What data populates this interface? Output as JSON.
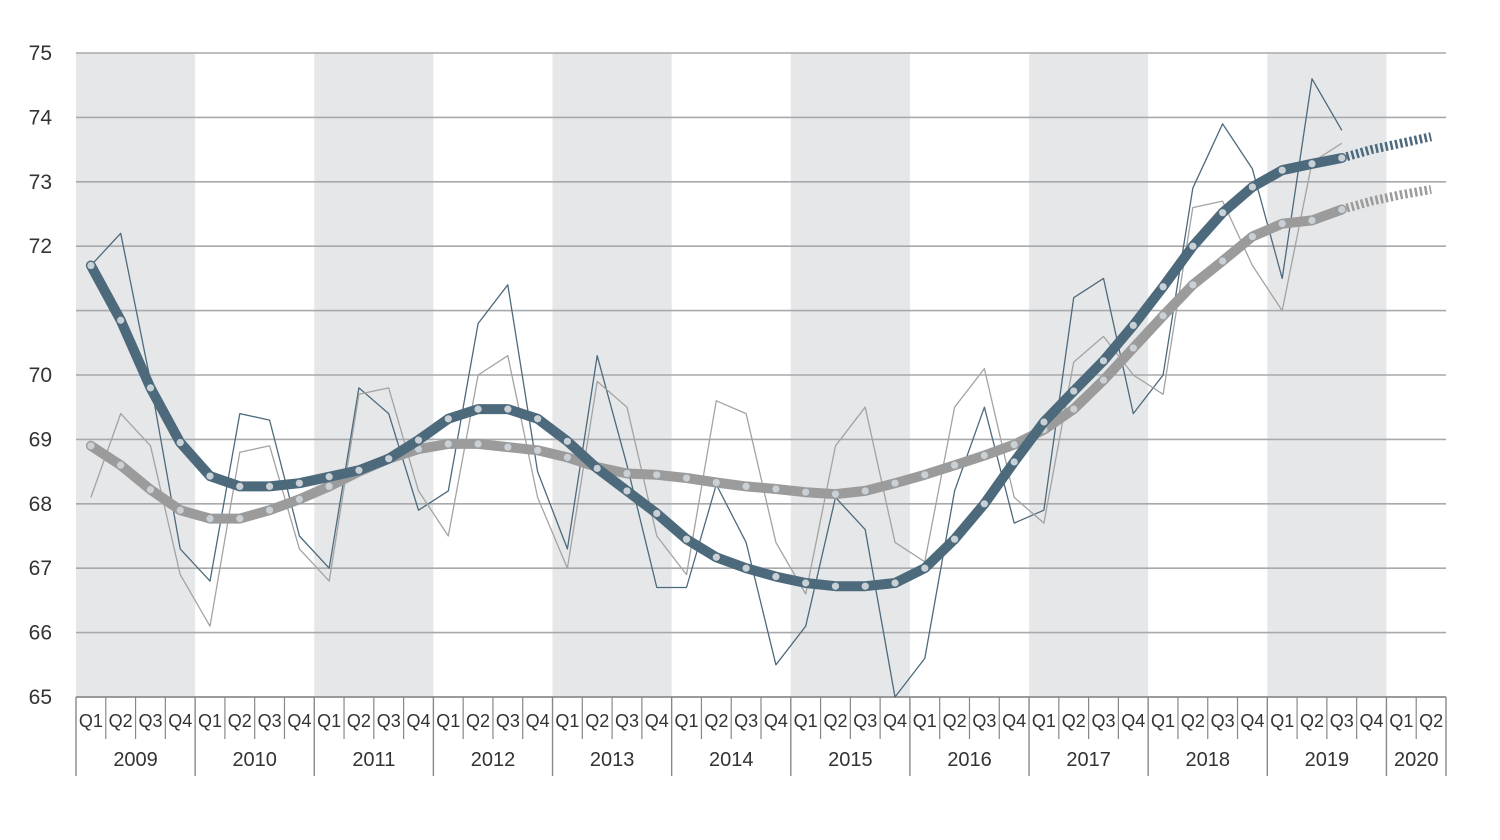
{
  "chart_data": {
    "type": "line",
    "title": "",
    "xlabel": "",
    "ylabel": "",
    "ylim": [
      65,
      75
    ],
    "y_ticks": [
      65,
      66,
      67,
      68,
      69,
      70,
      72,
      73,
      74,
      75
    ],
    "grid": "horizontal",
    "legend": "none",
    "colors": {
      "band": "#e6e7e9",
      "grid": "#a7a9ac",
      "series_dark": "#4d6a7c",
      "series_gray": "#9b9b9b",
      "marker": "#c9d0d6",
      "thin_gray": "#a3a3a3",
      "axis": "#888888"
    },
    "x_quarter_labels": [
      "Q1",
      "Q2",
      "Q3",
      "Q4"
    ],
    "years": [
      "2009",
      "2010",
      "2011",
      "2012",
      "2013",
      "2014",
      "2015",
      "2016",
      "2017",
      "2018",
      "2019",
      "2020"
    ],
    "years_quarters": [
      4,
      4,
      4,
      4,
      4,
      4,
      4,
      4,
      4,
      4,
      4,
      2
    ],
    "series": [
      {
        "style": "thin",
        "color": "#4d6a7c",
        "values": [
          71.7,
          72.2,
          69.9,
          67.3,
          66.8,
          69.4,
          69.3,
          67.5,
          67.0,
          69.8,
          69.4,
          67.9,
          68.2,
          70.8,
          71.4,
          68.5,
          67.3,
          70.3,
          68.6,
          66.7,
          66.7,
          68.3,
          67.4,
          65.5,
          66.1,
          68.1,
          67.6,
          65.0,
          65.6,
          68.2,
          69.5,
          67.7,
          67.9,
          71.2,
          71.5,
          69.4,
          70.0,
          72.9,
          73.9,
          73.2,
          71.5,
          74.6,
          73.8
        ]
      },
      {
        "style": "thin",
        "color": "#a3a3a3",
        "values": [
          68.1,
          69.4,
          68.9,
          66.9,
          66.1,
          68.8,
          68.9,
          67.3,
          66.8,
          69.7,
          69.8,
          68.2,
          67.5,
          70.0,
          70.3,
          68.1,
          67.0,
          69.9,
          69.5,
          67.5,
          66.9,
          69.6,
          69.4,
          67.4,
          66.6,
          68.9,
          69.5,
          67.4,
          67.1,
          69.5,
          70.1,
          68.1,
          67.7,
          70.2,
          70.6,
          70.0,
          69.7,
          72.6,
          72.7,
          71.7,
          71.0,
          73.3,
          73.6
        ]
      },
      {
        "style": "trend",
        "color": "#4d6a7c",
        "values": [
          71.7,
          70.85,
          69.8,
          68.95,
          68.43,
          68.27,
          68.27,
          68.32,
          68.42,
          68.52,
          68.7,
          68.99,
          69.32,
          69.47,
          69.47,
          69.32,
          68.97,
          68.55,
          68.2,
          67.85,
          67.45,
          67.17,
          67.0,
          66.87,
          66.77,
          66.72,
          66.72,
          66.77,
          67.0,
          67.45,
          68.0,
          68.65,
          69.27,
          69.75,
          70.22,
          70.77,
          71.37,
          72.0,
          72.52,
          72.92,
          73.18,
          73.28,
          73.37
        ],
        "forecast": [
          73.37,
          73.5,
          73.6,
          73.7
        ]
      },
      {
        "style": "trend",
        "color": "#9b9b9b",
        "values": [
          68.9,
          68.6,
          68.22,
          67.9,
          67.77,
          67.77,
          67.9,
          68.07,
          68.27,
          68.5,
          68.7,
          68.85,
          68.93,
          68.93,
          68.88,
          68.83,
          68.72,
          68.57,
          68.47,
          68.45,
          68.4,
          68.33,
          68.27,
          68.23,
          68.18,
          68.15,
          68.2,
          68.32,
          68.45,
          68.6,
          68.75,
          68.92,
          69.15,
          69.47,
          69.92,
          70.42,
          70.92,
          71.4,
          71.77,
          72.15,
          72.35,
          72.4,
          72.57
        ],
        "forecast": [
          72.57,
          72.7,
          72.8,
          72.88
        ]
      }
    ]
  }
}
